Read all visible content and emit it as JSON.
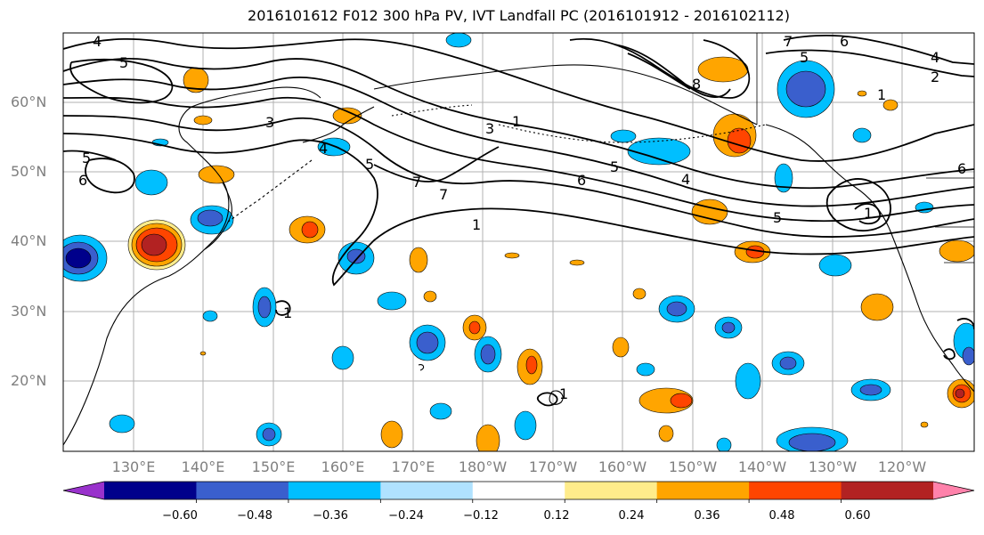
{
  "title": "2016101612 F012 300 hPa PV, IVT Landfall PC (2016101912 - 2016102112)",
  "lat_labels": [
    "60°N",
    "50°N",
    "40°N",
    "30°N",
    "20°N"
  ],
  "lon_labels": [
    "130°E",
    "140°E",
    "150°E",
    "160°E",
    "170°E",
    "180°W",
    "170°W",
    "160°W",
    "150°W",
    "140°W",
    "130°W",
    "120°W"
  ],
  "contour_labels": [
    "4",
    "5",
    "5",
    "6",
    "3",
    "1",
    "3",
    "5",
    "6",
    "7",
    "7",
    "1",
    "5",
    "4",
    "5",
    "6",
    "7",
    "6",
    "5",
    "4",
    "2",
    "1",
    "8",
    "4",
    "1",
    "1",
    "1"
  ],
  "colorbar": {
    "ticks": [
      "−0.60",
      "−0.48",
      "−0.36",
      "−0.24",
      "−0.12",
      "0.12",
      "0.24",
      "0.36",
      "0.48",
      "0.60"
    ],
    "colors": [
      "#9932cc",
      "#00008b",
      "#3a5fcd",
      "#00bfff",
      "#b0e2ff",
      "#ffffff",
      "#ffec8b",
      "#ffa500",
      "#ff4500",
      "#b22222",
      "#ff82ab"
    ]
  }
}
